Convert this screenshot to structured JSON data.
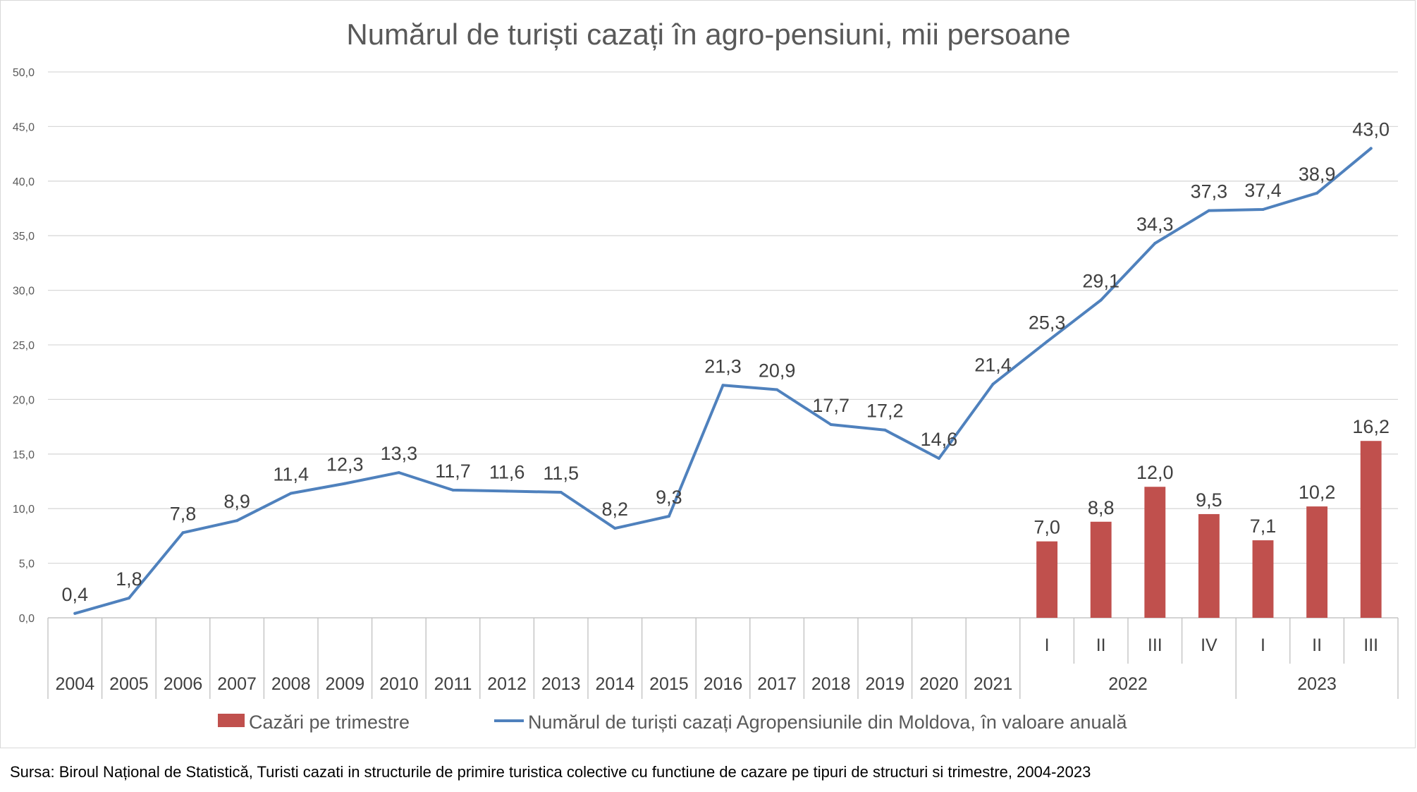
{
  "chart_data": {
    "type": "bar+line",
    "title": "Numărul de turiști cazați în agro-pensiuni, mii persoane",
    "ylim": [
      0,
      50
    ],
    "ytick_values": [
      0,
      5,
      10,
      15,
      20,
      25,
      30,
      35,
      40,
      45,
      50
    ],
    "yticks": [
      "0,0",
      "5,0",
      "10,0",
      "15,0",
      "20,0",
      "25,0",
      "30,0",
      "35,0",
      "40,0",
      "45,0",
      "50,0"
    ],
    "categories": [
      "2004",
      "2005",
      "2006",
      "2007",
      "2008",
      "2009",
      "2010",
      "2011",
      "2012",
      "2013",
      "2014",
      "2015",
      "2016",
      "2017",
      "2018",
      "2019",
      "2020",
      "2021",
      "I",
      "II",
      "III",
      "IV",
      "I",
      "II",
      "III"
    ],
    "groups": [
      {
        "label": "2022",
        "from": 18,
        "to": 21
      },
      {
        "label": "2023",
        "from": 22,
        "to": 24
      }
    ],
    "series": [
      {
        "name": "Cazări pe trimestre",
        "kind": "bar",
        "color": "#c0504d",
        "values": [
          null,
          null,
          null,
          null,
          null,
          null,
          null,
          null,
          null,
          null,
          null,
          null,
          null,
          null,
          null,
          null,
          null,
          null,
          7.0,
          8.8,
          12.0,
          9.5,
          7.1,
          10.2,
          16.2
        ],
        "labels": [
          null,
          null,
          null,
          null,
          null,
          null,
          null,
          null,
          null,
          null,
          null,
          null,
          null,
          null,
          null,
          null,
          null,
          null,
          "7,0",
          "8,8",
          "12,0",
          "9,5",
          "7,1",
          "10,2",
          "16,2"
        ]
      },
      {
        "name": "Numărul de turiști cazați Agropensiunile din Moldova, în valoare anuală",
        "kind": "line",
        "color": "#4f81bd",
        "values": [
          0.4,
          1.8,
          7.8,
          8.9,
          11.4,
          12.3,
          13.3,
          11.7,
          11.6,
          11.5,
          8.2,
          9.3,
          21.3,
          20.9,
          17.7,
          17.2,
          14.6,
          21.4,
          25.3,
          29.1,
          34.3,
          37.3,
          37.4,
          38.9,
          43.0
        ],
        "labels": [
          "0,4",
          "1,8",
          "7,8",
          "8,9",
          "11,4",
          "12,3",
          "13,3",
          "11,7",
          "11,6",
          "11,5",
          "8,2",
          "9,3",
          "21,3",
          "20,9",
          "17,7",
          "17,2",
          "14,6",
          "21,4",
          "25,3",
          "29,1",
          "34,3",
          "37,3",
          "37,4",
          "38,9",
          "43,0"
        ]
      }
    ],
    "legend_position": "bottom"
  },
  "source": "Sursa: Biroul Național de Statistică, Turisti cazati in structurile de primire turistica colective cu functiune de cazare pe tipuri de structuri si trimestre, 2004-2023"
}
